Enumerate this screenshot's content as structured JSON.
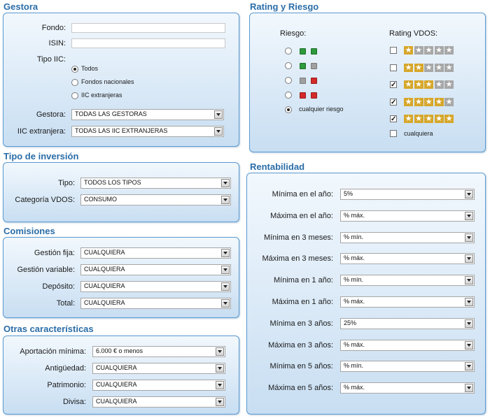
{
  "gestora": {
    "title": "Gestora",
    "fondo_label": "Fondo:",
    "isin_label": "ISIN:",
    "tipo_label": "Tipo IIC:",
    "tipo_options": [
      "Todos",
      "Fondos nacionales",
      "IIC extranjeras"
    ],
    "tipo_selected": 0,
    "gestora_label": "Gestora:",
    "gestora_value": "TODAS LAS GESTORAS",
    "iic_label": "IIC extranjera:",
    "iic_value": "TODAS LAS IIC EXTRANJERAS"
  },
  "rating": {
    "title": "Rating y Riesgo",
    "riesgo_label": "Riesgo:",
    "rating_label": "Rating VDOS:",
    "riesgo_options": [
      {
        "colors": [
          "green",
          "green"
        ]
      },
      {
        "colors": [
          "green",
          "gray"
        ]
      },
      {
        "colors": [
          "gray",
          "red"
        ]
      },
      {
        "colors": [
          "red",
          "red"
        ]
      },
      {
        "text": "cualquier riesgo"
      }
    ],
    "riesgo_selected": 4,
    "rating_options": [
      {
        "stars": 1,
        "checked": false
      },
      {
        "stars": 2,
        "checked": false
      },
      {
        "stars": 3,
        "checked": true
      },
      {
        "stars": 4,
        "checked": true
      },
      {
        "stars": 5,
        "checked": true
      },
      {
        "text": "cualquiera",
        "checked": false
      }
    ],
    "star_glyph": "★",
    "check_glyph": "✓"
  },
  "tipo_inversion": {
    "title": "Tipo de inversión",
    "tipo_label": "Tipo:",
    "tipo_value": "TODOS LOS TIPOS",
    "categoria_label": "Categoría VDOS:",
    "categoria_value": "CONSUMO"
  },
  "comisiones": {
    "title": "Comisiones",
    "rows": [
      {
        "label": "Gestión fija:",
        "value": "CUALQUIERA"
      },
      {
        "label": "Gestión variable:",
        "value": "CUALQUIERA"
      },
      {
        "label": "Depósito:",
        "value": "CUALQUIERA"
      },
      {
        "label": "Total:",
        "value": "CUALQUIERA"
      }
    ]
  },
  "otras": {
    "title": "Otras características",
    "rows": [
      {
        "label": "Aportación mínima:",
        "value": "6.000 € o menos"
      },
      {
        "label": "Antigüedad:",
        "value": "CUALQUIERA"
      },
      {
        "label": "Patrimonio:",
        "value": "CUALQUIERA"
      },
      {
        "label": "Divisa:",
        "value": "CUALQUIERA"
      }
    ]
  },
  "rentabilidad": {
    "title": "Rentabilidad",
    "rows": [
      {
        "label": "Mínima en el año:",
        "value": "5%"
      },
      {
        "label": "Máxima en el año:",
        "value": "% máx."
      },
      {
        "label": "Mínima en 3 meses:",
        "value": "% mín."
      },
      {
        "label": "Máxima en 3 meses:",
        "value": "% máx."
      },
      {
        "label": "Mínima en 1 año:",
        "value": "% mín."
      },
      {
        "label": "Máxima en 1 año:",
        "value": "% máx."
      },
      {
        "label": "Mínima en 3 años:",
        "value": "25%"
      },
      {
        "label": "Máxima en 3 años:",
        "value": "% máx."
      },
      {
        "label": "Mínima en 5 años:",
        "value": "% mín."
      },
      {
        "label": "Máxima en 5 años:",
        "value": "% máx."
      }
    ]
  },
  "colors": {
    "accent": "#2a6da8",
    "panel_border": "#5a9ad0",
    "star_on": "#d7a72a",
    "star_off": "#a7a7a7",
    "risk_green": "#2e9a3c",
    "risk_gray": "#a0a0a0",
    "risk_red": "#d42a2a"
  }
}
